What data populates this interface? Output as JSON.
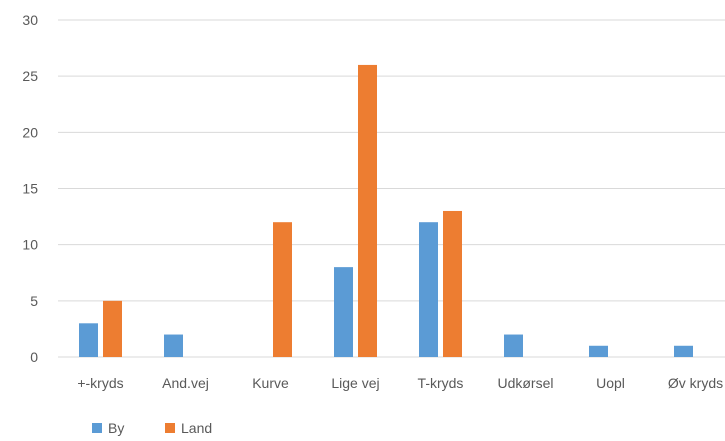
{
  "chart_data": {
    "type": "bar",
    "categories": [
      "+-kryds",
      "And.vej",
      "Kurve",
      "Lige vej",
      "T-kryds",
      "Udkørsel",
      "Uopl",
      "Øv kryds"
    ],
    "series": [
      {
        "name": "By",
        "values": [
          3,
          2,
          0,
          8,
          12,
          2,
          1,
          1
        ]
      },
      {
        "name": "Land",
        "values": [
          5,
          0,
          12,
          26,
          13,
          0,
          0,
          0
        ]
      }
    ],
    "title": "",
    "xlabel": "",
    "ylabel": "",
    "ylim": [
      0,
      30
    ],
    "yticks": [
      "0",
      "5",
      "10",
      "15",
      "20",
      "25",
      "30"
    ],
    "grid": true,
    "legend_position": "bottom-left"
  },
  "colors": {
    "By": "#5B9BD5",
    "Land": "#ED7D31",
    "grid": "#D9D9D9",
    "text": "#595959"
  }
}
